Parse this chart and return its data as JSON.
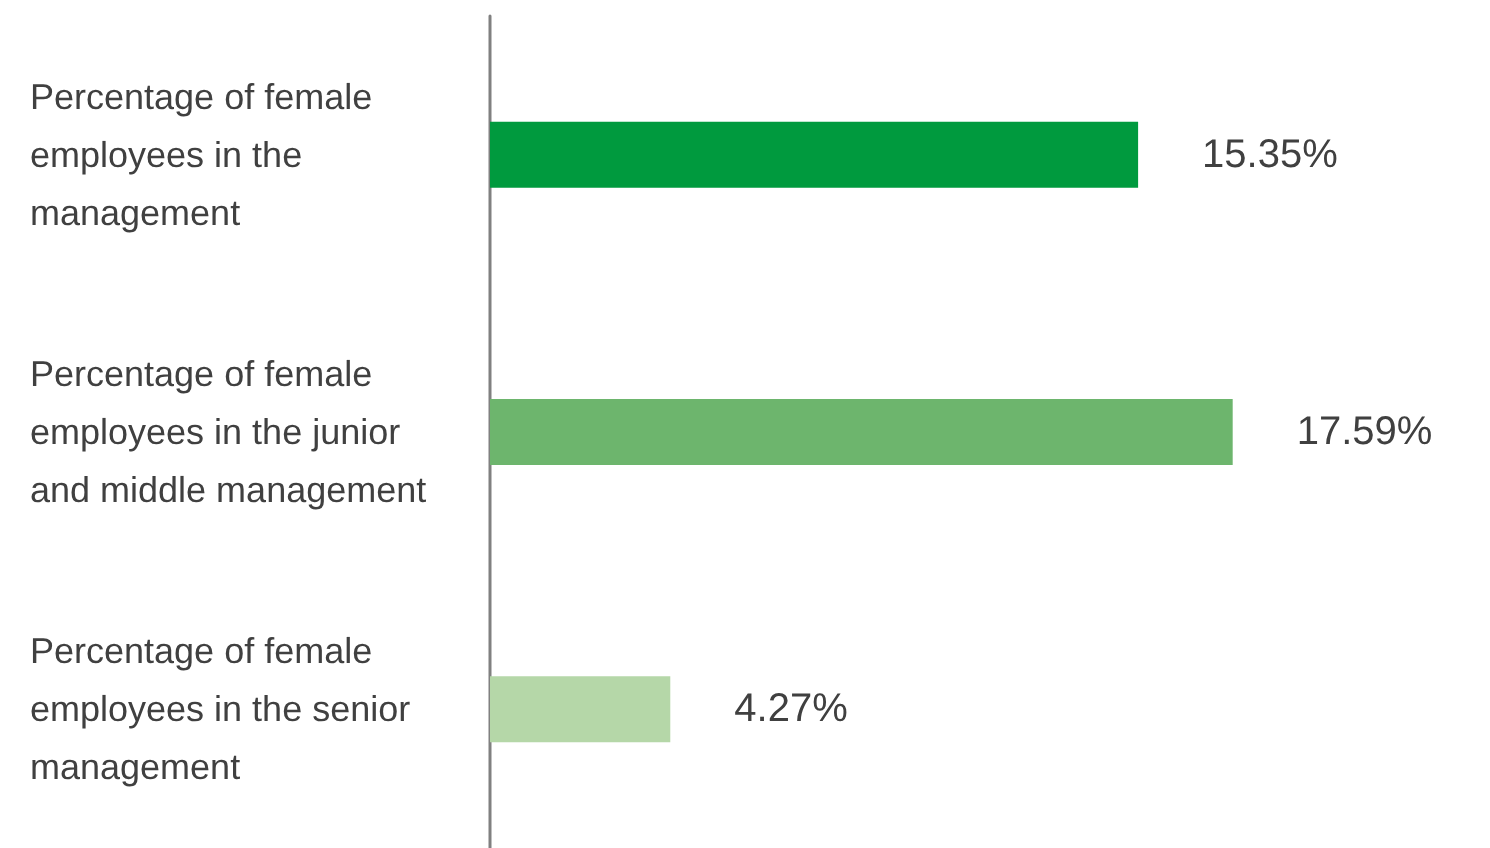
{
  "chart_data": {
    "type": "bar",
    "orientation": "horizontal",
    "categories": [
      "Percentage of female employees in the management",
      "Percentage of female employees in the junior and middle management",
      "Percentage of female employees in the senior management"
    ],
    "values": [
      15.35,
      17.59,
      4.27
    ],
    "colors": [
      "#009a3e",
      "#6db56d",
      "#b5d7a8"
    ],
    "value_labels": [
      "15.35%",
      "17.59%",
      "4.27%"
    ],
    "tick_labels": "y",
    "grid": false
  }
}
